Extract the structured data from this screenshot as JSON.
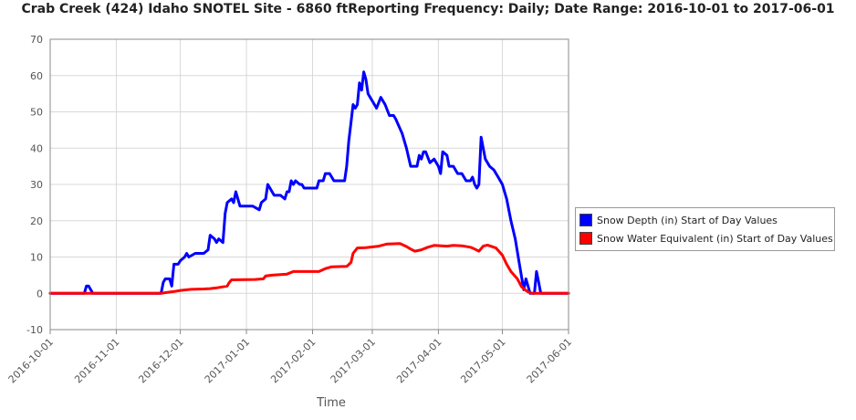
{
  "chart_data": {
    "type": "line",
    "title": "Crab Creek (424) Idaho  SNOTEL Site - 6860 ftReporting Frequency: Daily; Date Range: 2016-10-01 to 2017-06-01",
    "xlabel": "Time",
    "ylabel": "",
    "ylim": [
      -10,
      70
    ],
    "yticks": [
      -10,
      0,
      10,
      20,
      30,
      40,
      50,
      60,
      70
    ],
    "xlim": [
      "2016-10-01",
      "2017-06-01"
    ],
    "xticks": [
      "2016-10-01",
      "2016-11-01",
      "2016-12-01",
      "2017-01-01",
      "2017-02-01",
      "2017-03-01",
      "2017-04-01",
      "2017-05-01",
      "2017-06-01"
    ],
    "grid": true,
    "legend_position": "right",
    "series": [
      {
        "name": "Snow Depth (in) Start of Day Values",
        "color": "#0000ff",
        "points": [
          [
            "2016-10-01",
            0
          ],
          [
            "2016-10-17",
            0
          ],
          [
            "2016-10-18",
            2
          ],
          [
            "2016-10-19",
            2
          ],
          [
            "2016-10-20",
            1
          ],
          [
            "2016-10-21",
            0
          ],
          [
            "2016-11-22",
            0
          ],
          [
            "2016-11-23",
            3
          ],
          [
            "2016-11-24",
            4
          ],
          [
            "2016-11-26",
            4
          ],
          [
            "2016-11-27",
            2
          ],
          [
            "2016-11-28",
            8
          ],
          [
            "2016-11-30",
            8
          ],
          [
            "2016-12-01",
            9
          ],
          [
            "2016-12-03",
            10
          ],
          [
            "2016-12-04",
            11
          ],
          [
            "2016-12-05",
            10
          ],
          [
            "2016-12-08",
            11
          ],
          [
            "2016-12-12",
            11
          ],
          [
            "2016-12-14",
            12
          ],
          [
            "2016-12-15",
            16
          ],
          [
            "2016-12-17",
            15
          ],
          [
            "2016-12-18",
            14
          ],
          [
            "2016-12-19",
            15
          ],
          [
            "2016-12-21",
            14
          ],
          [
            "2016-12-22",
            22
          ],
          [
            "2016-12-23",
            25
          ],
          [
            "2016-12-25",
            26
          ],
          [
            "2016-12-26",
            25
          ],
          [
            "2016-12-27",
            28
          ],
          [
            "2016-12-28",
            26
          ],
          [
            "2016-12-29",
            24
          ],
          [
            "2017-01-04",
            24
          ],
          [
            "2017-01-07",
            23
          ],
          [
            "2017-01-08",
            25
          ],
          [
            "2017-01-10",
            26
          ],
          [
            "2017-01-11",
            30
          ],
          [
            "2017-01-12",
            29
          ],
          [
            "2017-01-14",
            27
          ],
          [
            "2017-01-17",
            27
          ],
          [
            "2017-01-19",
            26
          ],
          [
            "2017-01-20",
            28
          ],
          [
            "2017-01-21",
            28
          ],
          [
            "2017-01-22",
            31
          ],
          [
            "2017-01-23",
            30
          ],
          [
            "2017-01-24",
            31
          ],
          [
            "2017-01-26",
            30
          ],
          [
            "2017-01-27",
            30
          ],
          [
            "2017-01-28",
            29
          ],
          [
            "2017-02-03",
            29
          ],
          [
            "2017-02-04",
            31
          ],
          [
            "2017-02-06",
            31
          ],
          [
            "2017-02-07",
            33
          ],
          [
            "2017-02-09",
            33
          ],
          [
            "2017-02-10",
            32
          ],
          [
            "2017-02-11",
            31
          ],
          [
            "2017-02-16",
            31
          ],
          [
            "2017-02-17",
            35
          ],
          [
            "2017-02-18",
            42
          ],
          [
            "2017-02-19",
            47
          ],
          [
            "2017-02-20",
            52
          ],
          [
            "2017-02-21",
            51
          ],
          [
            "2017-02-22",
            52
          ],
          [
            "2017-02-23",
            58
          ],
          [
            "2017-02-24",
            56
          ],
          [
            "2017-02-25",
            61
          ],
          [
            "2017-02-26",
            59
          ],
          [
            "2017-02-27",
            55
          ],
          [
            "2017-02-28",
            54
          ],
          [
            "2017-03-01",
            53
          ],
          [
            "2017-03-02",
            52
          ],
          [
            "2017-03-03",
            51
          ],
          [
            "2017-03-05",
            54
          ],
          [
            "2017-03-07",
            52
          ],
          [
            "2017-03-09",
            49
          ],
          [
            "2017-03-11",
            49
          ],
          [
            "2017-03-12",
            48
          ],
          [
            "2017-03-15",
            44
          ],
          [
            "2017-03-17",
            40
          ],
          [
            "2017-03-19",
            35
          ],
          [
            "2017-03-22",
            35
          ],
          [
            "2017-03-23",
            38
          ],
          [
            "2017-03-24",
            37
          ],
          [
            "2017-03-25",
            39
          ],
          [
            "2017-03-26",
            39
          ],
          [
            "2017-03-28",
            36
          ],
          [
            "2017-03-30",
            37
          ],
          [
            "2017-04-01",
            35
          ],
          [
            "2017-04-02",
            33
          ],
          [
            "2017-04-03",
            39
          ],
          [
            "2017-04-05",
            38
          ],
          [
            "2017-04-06",
            35
          ],
          [
            "2017-04-08",
            35
          ],
          [
            "2017-04-10",
            33
          ],
          [
            "2017-04-12",
            33
          ],
          [
            "2017-04-14",
            31
          ],
          [
            "2017-04-16",
            31
          ],
          [
            "2017-04-17",
            32
          ],
          [
            "2017-04-18",
            30
          ],
          [
            "2017-04-19",
            29
          ],
          [
            "2017-04-20",
            30
          ],
          [
            "2017-04-21",
            43
          ],
          [
            "2017-04-23",
            37
          ],
          [
            "2017-04-25",
            35
          ],
          [
            "2017-04-27",
            34
          ],
          [
            "2017-04-29",
            32
          ],
          [
            "2017-05-01",
            30
          ],
          [
            "2017-05-03",
            26
          ],
          [
            "2017-05-05",
            20
          ],
          [
            "2017-05-07",
            15
          ],
          [
            "2017-05-09",
            8
          ],
          [
            "2017-05-11",
            1
          ],
          [
            "2017-05-12",
            4
          ],
          [
            "2017-05-13",
            2
          ],
          [
            "2017-05-14",
            0
          ],
          [
            "2017-05-16",
            0
          ],
          [
            "2017-05-17",
            6
          ],
          [
            "2017-05-18",
            3
          ],
          [
            "2017-05-19",
            0
          ],
          [
            "2017-06-01",
            0
          ]
        ]
      },
      {
        "name": "Snow Water Equivalent (in) Start of Day Values",
        "color": "#ff0000",
        "points": [
          [
            "2016-10-01",
            0
          ],
          [
            "2016-11-22",
            0
          ],
          [
            "2016-11-24",
            0.2
          ],
          [
            "2016-11-28",
            0.5
          ],
          [
            "2016-12-01",
            0.8
          ],
          [
            "2016-12-06",
            1.1
          ],
          [
            "2016-12-12",
            1.2
          ],
          [
            "2016-12-15",
            1.3
          ],
          [
            "2016-12-18",
            1.5
          ],
          [
            "2016-12-23",
            2
          ],
          [
            "2016-12-24",
            3
          ],
          [
            "2016-12-25",
            3.7
          ],
          [
            "2017-01-05",
            3.8
          ],
          [
            "2017-01-09",
            4
          ],
          [
            "2017-01-10",
            4.8
          ],
          [
            "2017-01-13",
            5
          ],
          [
            "2017-01-20",
            5.3
          ],
          [
            "2017-01-23",
            6
          ],
          [
            "2017-02-04",
            6
          ],
          [
            "2017-02-07",
            6.8
          ],
          [
            "2017-02-10",
            7.3
          ],
          [
            "2017-02-17",
            7.4
          ],
          [
            "2017-02-19",
            8.5
          ],
          [
            "2017-02-20",
            11
          ],
          [
            "2017-02-22",
            12.5
          ],
          [
            "2017-02-26",
            12.6
          ],
          [
            "2017-03-04",
            13
          ],
          [
            "2017-03-08",
            13.6
          ],
          [
            "2017-03-14",
            13.7
          ],
          [
            "2017-03-17",
            12.9
          ],
          [
            "2017-03-19",
            12.2
          ],
          [
            "2017-03-21",
            11.6
          ],
          [
            "2017-03-24",
            12
          ],
          [
            "2017-03-27",
            12.7
          ],
          [
            "2017-03-30",
            13.2
          ],
          [
            "2017-04-05",
            13
          ],
          [
            "2017-04-08",
            13.2
          ],
          [
            "2017-04-12",
            13.1
          ],
          [
            "2017-04-16",
            12.7
          ],
          [
            "2017-04-18",
            12.2
          ],
          [
            "2017-04-20",
            11.6
          ],
          [
            "2017-04-22",
            13
          ],
          [
            "2017-04-24",
            13.3
          ],
          [
            "2017-04-28",
            12.5
          ],
          [
            "2017-05-01",
            10.5
          ],
          [
            "2017-05-03",
            8
          ],
          [
            "2017-05-05",
            6
          ],
          [
            "2017-05-08",
            4
          ],
          [
            "2017-05-10",
            1.8
          ],
          [
            "2017-05-12",
            0.8
          ],
          [
            "2017-05-13",
            0.4
          ],
          [
            "2017-05-15",
            0
          ],
          [
            "2017-06-01",
            0
          ]
        ]
      }
    ]
  }
}
